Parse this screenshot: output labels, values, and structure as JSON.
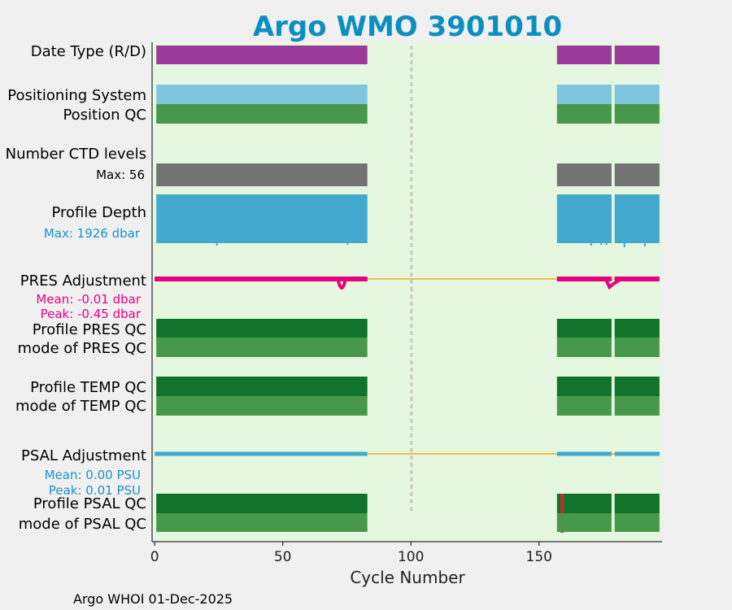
{
  "chart_data": {
    "type": "timeline",
    "title": "Argo WMO 3901010",
    "xlabel": "Cycle Number",
    "xlim": [
      -1,
      198
    ],
    "xticks": [
      0,
      50,
      100,
      150
    ],
    "marker_cycle": 100,
    "active_segments": [
      [
        0,
        83
      ],
      [
        157,
        197
      ]
    ],
    "gaps": [
      179
    ],
    "footer": "Argo WHOI 01-Dec-2025",
    "rows": [
      {
        "label": "Date Type (R/D)",
        "color": "#9b3a99",
        "kind": "bar"
      },
      {
        "label": "Positioning System",
        "color": "#7ec5e0",
        "kind": "bar"
      },
      {
        "label": "Position QC",
        "color": "#46994a",
        "kind": "bar"
      },
      {
        "label": "Number CTD levels",
        "sub": "Max: 56",
        "color": "#737373",
        "kind": "bar"
      },
      {
        "label": "Profile Depth",
        "sub": "Max: 1926 dbar",
        "color": "#43a9cf",
        "kind": "bar"
      },
      {
        "label": "PRES Adjustment",
        "subs": [
          "Mean: -0.01 dbar",
          "Peak: -0.45 dbar"
        ],
        "color": "#e6007e",
        "kind": "line"
      },
      {
        "label": "Profile PRES QC",
        "color": "#12732b",
        "kind": "bar"
      },
      {
        "label": "mode of PRES QC",
        "color": "#46994a",
        "kind": "bar"
      },
      {
        "label": "Profile TEMP QC",
        "color": "#12732b",
        "kind": "bar"
      },
      {
        "label": "mode of TEMP QC",
        "color": "#46994a",
        "kind": "bar"
      },
      {
        "label": "PSAL Adjustment",
        "subs": [
          "Mean: 0.00 PSU",
          "Peak: 0.01 PSU"
        ],
        "color": "#43a9cf",
        "kind": "line"
      },
      {
        "label": "Profile PSAL QC",
        "color": "#12732b",
        "kind": "bar",
        "flag_cycle": 159,
        "flag_color": "#d62728"
      },
      {
        "label": "mode of PSAL QC",
        "color": "#46994a",
        "kind": "bar"
      }
    ],
    "colors": {
      "background": "#f0f0f0",
      "plot_bg": "#e5f8df",
      "title": "#0a8fc0",
      "sub_pink": "#e6007e",
      "sub_blue": "#1a93c2",
      "fill_line": "#f0c050",
      "marker": "#c8c8c8"
    }
  }
}
